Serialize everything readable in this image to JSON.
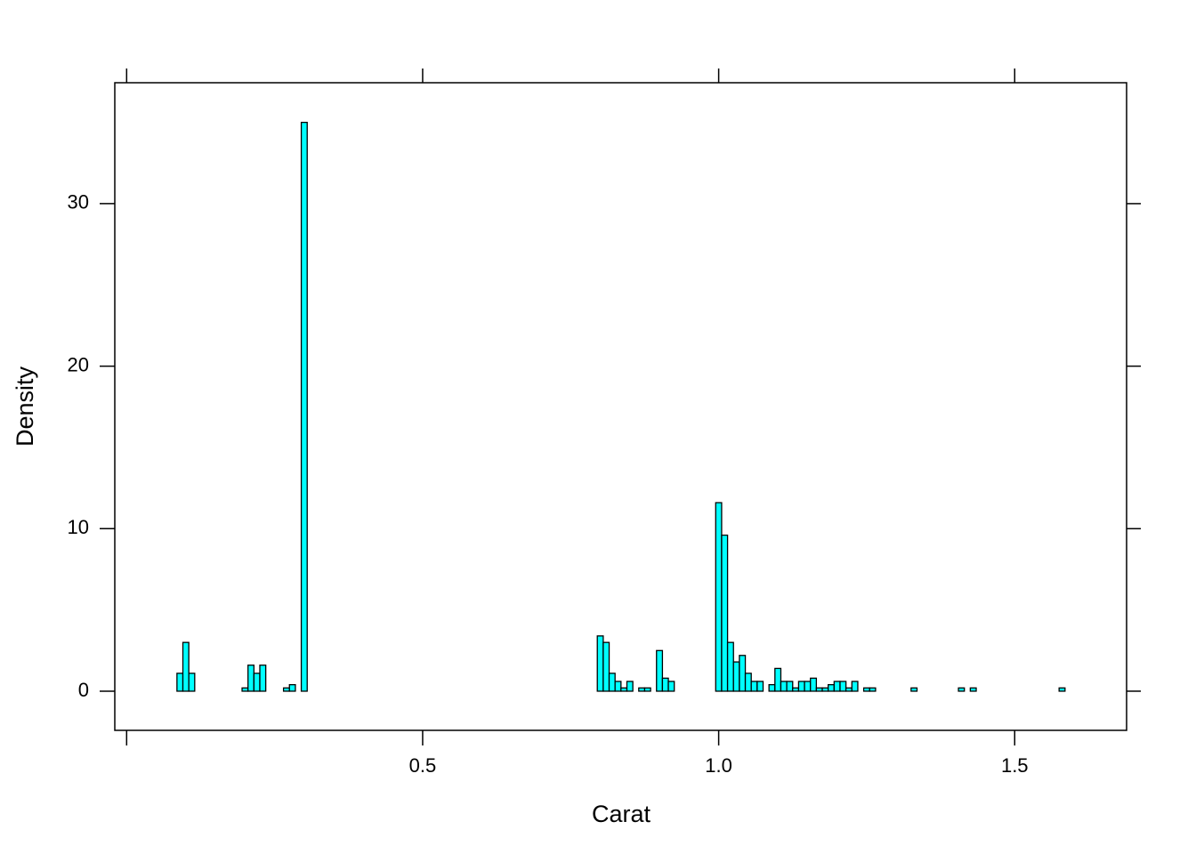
{
  "chart_data": {
    "type": "histogram",
    "xlabel": "Carat",
    "ylabel": "Density",
    "bins": [
      0.065,
      0.075,
      0.085,
      0.095,
      0.105,
      0.115,
      0.125,
      0.135,
      0.145,
      0.155,
      0.165,
      0.175,
      0.185,
      0.195,
      0.205,
      0.215,
      0.225,
      0.235,
      0.245,
      0.255,
      0.265,
      0.275,
      0.285,
      0.295,
      0.305,
      0.315,
      0.325,
      0.335,
      0.345,
      0.355,
      0.365,
      0.375,
      0.385,
      0.395,
      0.405,
      0.415,
      0.425,
      0.435,
      0.445,
      0.455,
      0.465,
      0.475,
      0.485,
      0.495,
      0.505,
      0.515,
      0.525,
      0.535,
      0.545,
      0.555,
      0.565,
      0.575,
      0.585,
      0.595,
      0.605,
      0.615,
      0.625,
      0.635,
      0.645,
      0.655,
      0.665,
      0.675,
      0.685,
      0.695,
      0.705,
      0.715,
      0.725,
      0.735,
      0.745,
      0.755,
      0.765,
      0.775,
      0.785,
      0.795,
      0.805,
      0.815,
      0.825,
      0.835,
      0.845,
      0.855,
      0.865,
      0.875,
      0.885,
      0.895,
      0.905,
      0.915,
      0.925,
      0.935,
      0.945,
      0.955,
      0.965,
      0.975,
      0.985,
      0.995,
      1.005,
      1.015,
      1.025,
      1.035,
      1.045,
      1.055,
      1.065,
      1.075,
      1.085,
      1.095,
      1.105,
      1.115,
      1.125,
      1.135,
      1.145,
      1.155,
      1.165,
      1.175,
      1.185,
      1.195,
      1.205,
      1.215,
      1.225,
      1.235,
      1.245,
      1.255,
      1.265,
      1.275,
      1.285,
      1.295,
      1.305,
      1.315,
      1.325,
      1.335,
      1.345,
      1.355,
      1.365,
      1.375,
      1.385,
      1.395,
      1.405,
      1.415,
      1.425,
      1.435,
      1.445,
      1.455,
      1.465,
      1.475,
      1.485,
      1.495,
      1.505,
      1.515,
      1.525,
      1.535,
      1.545,
      1.555,
      1.565,
      1.575,
      1.585,
      1.595,
      1.605
    ],
    "values": [
      0,
      0,
      1.1,
      3.0,
      1.1,
      0,
      0,
      0,
      0,
      0,
      0,
      0,
      0,
      0.2,
      1.6,
      1.1,
      1.6,
      0,
      0,
      0,
      0.2,
      0.4,
      0,
      35.0,
      0,
      0,
      0,
      0,
      0,
      0,
      0,
      0,
      0,
      0,
      0,
      0,
      0,
      0,
      0,
      0,
      0,
      0,
      0,
      0,
      0,
      0,
      0,
      0,
      0,
      0,
      0,
      0,
      0,
      0,
      0,
      0,
      0,
      0,
      0,
      0,
      0,
      0,
      0,
      0,
      0,
      0,
      0,
      0,
      0,
      0,
      0,
      0,
      0,
      3.4,
      3.0,
      1.1,
      0.6,
      0.2,
      0.6,
      0,
      0.2,
      0.2,
      0,
      2.5,
      0.8,
      0.6,
      0,
      0,
      0,
      0,
      0,
      0,
      0,
      11.6,
      9.6,
      3.0,
      1.8,
      2.2,
      1.1,
      0.6,
      0.6,
      0,
      0.4,
      1.4,
      0.6,
      0.6,
      0.2,
      0.6,
      0.6,
      0.8,
      0.2,
      0.2,
      0.4,
      0.6,
      0.6,
      0.2,
      0.6,
      0,
      0.2,
      0.2,
      0,
      0,
      0,
      0,
      0,
      0,
      0.2,
      0,
      0,
      0,
      0,
      0,
      0,
      0,
      0.2,
      0,
      0.2,
      0,
      0,
      0,
      0,
      0,
      0,
      0,
      0,
      0,
      0,
      0,
      0,
      0,
      0,
      0.2,
      0,
      0
    ],
    "color": "#00ffff",
    "xlim": [
      -0.02,
      1.689
    ],
    "ylim": [
      -2.41,
      37.44
    ],
    "xticks": [
      {
        "value": 0,
        "label": null
      },
      0.5,
      {
        "value": 1,
        "label": "1.0"
      },
      1.5
    ],
    "yticks": [
      0,
      10,
      20,
      30
    ]
  }
}
